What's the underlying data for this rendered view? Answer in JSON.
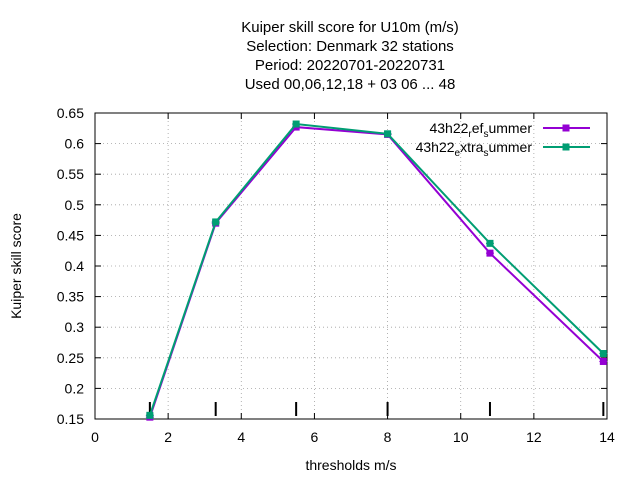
{
  "chart_data": {
    "type": "line",
    "title_lines": [
      "Kuiper skill score  for U10m (m/s)",
      "Selection: Denmark     32 stations",
      "Period: 20220701-20220731",
      "Used  00,06,12,18  + 03 06 ... 48"
    ],
    "xlabel": "thresholds m/s",
    "ylabel": "Kuiper skill score",
    "xlim": [
      0,
      14
    ],
    "ylim": [
      0.15,
      0.65
    ],
    "xticks": [
      "0",
      "2",
      "4",
      "6",
      "8",
      "10",
      "12",
      "14"
    ],
    "yticks": [
      "0.15",
      "0.2",
      "0.25",
      "0.3",
      "0.35",
      "0.4",
      "0.45",
      "0.5",
      "0.55",
      "0.6",
      "0.65"
    ],
    "grid": true,
    "legend_position": "top-right",
    "threshold_markers": [
      1.5,
      3.3,
      5.5,
      8.0,
      10.8,
      13.9
    ],
    "series": [
      {
        "name_parts": [
          "43h22",
          "r",
          "ef",
          "s",
          "ummer"
        ],
        "color": "#9400d3",
        "x": [
          1.5,
          3.3,
          5.5,
          8.0,
          10.8,
          13.9
        ],
        "y": [
          0.153,
          0.47,
          0.627,
          0.615,
          0.421,
          0.244
        ]
      },
      {
        "name_parts": [
          "43h22",
          "e",
          "xtra",
          "s",
          "ummer"
        ],
        "color": "#009e73",
        "x": [
          1.5,
          3.3,
          5.5,
          8.0,
          10.8,
          13.9
        ],
        "y": [
          0.156,
          0.472,
          0.632,
          0.616,
          0.437,
          0.257
        ]
      }
    ]
  }
}
